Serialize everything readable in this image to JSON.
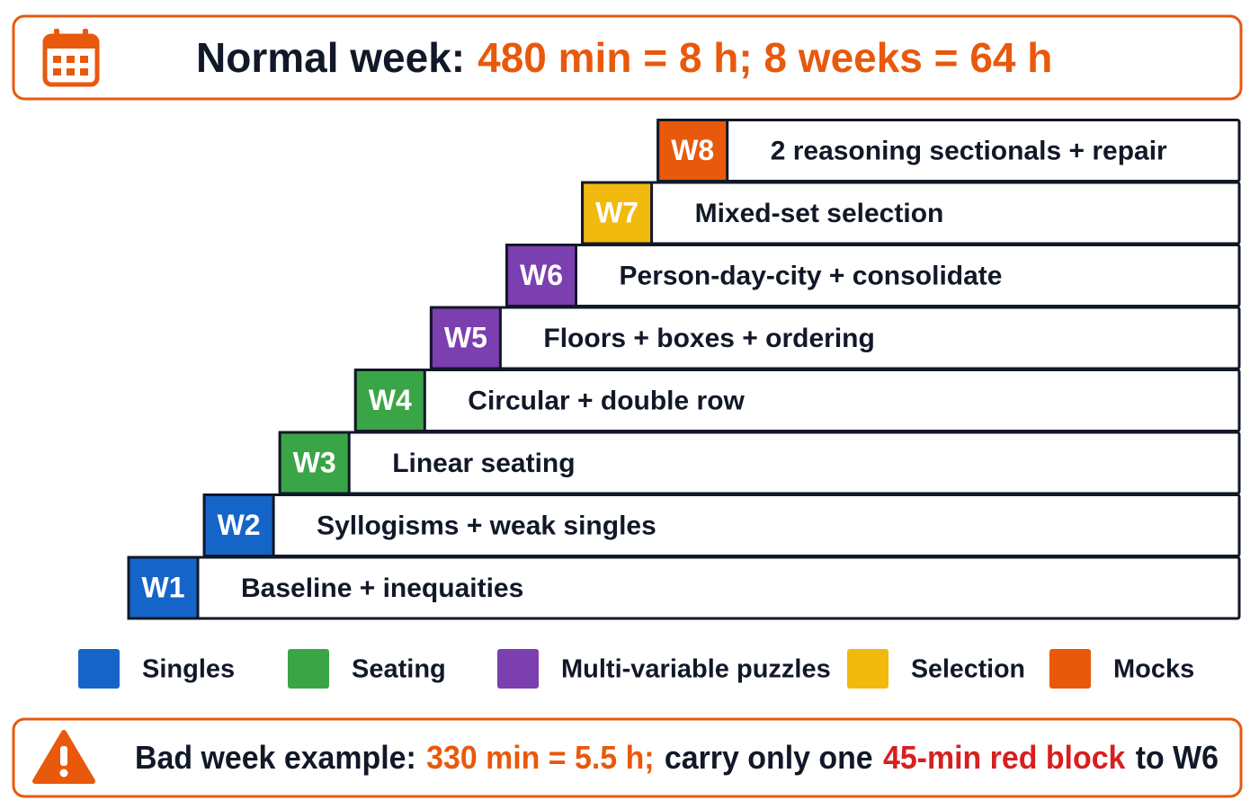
{
  "header": {
    "lead": "Normal week:",
    "highlight": "480 min = 8 h; 8 weeks = 64 h"
  },
  "steps": [
    {
      "tag": "W1",
      "label": "Baseline + inequaities",
      "color": "#1565c8"
    },
    {
      "tag": "W2",
      "label": "Syllogisms + weak singles",
      "color": "#1565c8"
    },
    {
      "tag": "W3",
      "label": "Linear seating",
      "color": "#3aa547"
    },
    {
      "tag": "W4",
      "label": "Circular + double row",
      "color": "#3aa547"
    },
    {
      "tag": "W5",
      "label": "Floors + boxes + ordering",
      "color": "#7b3fb0"
    },
    {
      "tag": "W6",
      "label": "Person-day-city + consolidate",
      "color": "#7b3fb0"
    },
    {
      "tag": "W7",
      "label": "Mixed-set selection",
      "color": "#f2b90f"
    },
    {
      "tag": "W8",
      "label": "2 reasoning sectionals + repair",
      "color": "#e8590c"
    }
  ],
  "legend": [
    {
      "name": "Singles",
      "color": "#1565c8"
    },
    {
      "name": "Seating",
      "color": "#3aa547"
    },
    {
      "name": "Multi-variable puzzles",
      "color": "#7b3fb0"
    },
    {
      "name": "Selection",
      "color": "#f2b90f"
    },
    {
      "name": "Mocks",
      "color": "#e8590c"
    }
  ],
  "footer": {
    "parts": [
      {
        "text": "Bad week example:",
        "color": "#111827"
      },
      {
        "text": "330 min = 5.5 h;",
        "color": "#e8590c"
      },
      {
        "text": "carry only one",
        "color": "#111827"
      },
      {
        "text": "45-min red block",
        "color": "#d62020"
      },
      {
        "text": "to W6",
        "color": "#111827"
      }
    ]
  }
}
